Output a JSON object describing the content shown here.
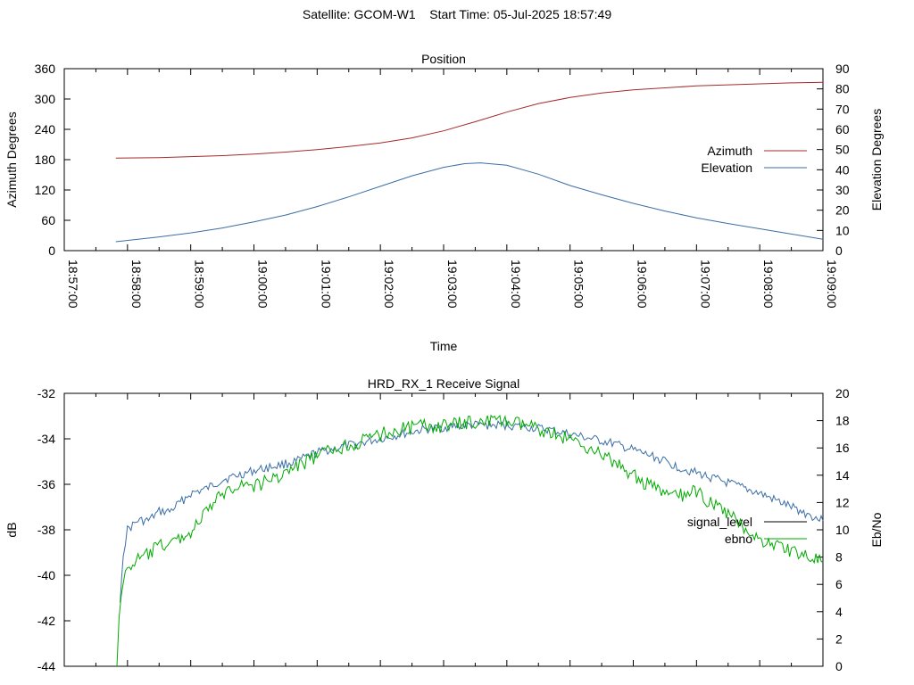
{
  "header": {
    "satellite_text": "Satellite: GCOM-W1",
    "start_time_text": "Start Time: 05-Jul-2025 18:57:49"
  },
  "chart_data": [
    {
      "type": "line",
      "title": "Position",
      "xlabel": "Time",
      "ylabel": "Azimuth Degrees",
      "y2label": "Elevation Degrees",
      "x_ticks": [
        "18:57:00",
        "18:58:00",
        "18:59:00",
        "19:00:00",
        "19:01:00",
        "19:02:00",
        "19:03:00",
        "19:04:00",
        "19:05:00",
        "19:06:00",
        "19:07:00",
        "19:08:00",
        "19:09:00"
      ],
      "xlim": [
        "18:57:00",
        "19:09:00"
      ],
      "ylim": [
        0,
        360
      ],
      "y_ticks": [
        0,
        60,
        120,
        180,
        240,
        300,
        360
      ],
      "y2lim": [
        0,
        90
      ],
      "y2_ticks": [
        0,
        10,
        20,
        30,
        40,
        50,
        60,
        70,
        80,
        90
      ],
      "legend_position": "right",
      "grid": false,
      "series": [
        {
          "name": "Azimuth",
          "axis": "y",
          "color": "#a52a2a",
          "points": [
            [
              "18:57:49",
              183
            ],
            [
              "18:58:30",
              184
            ],
            [
              "18:59:00",
              186
            ],
            [
              "18:59:30",
              188
            ],
            [
              "19:00:00",
              191
            ],
            [
              "19:00:30",
              195
            ],
            [
              "19:01:00",
              200
            ],
            [
              "19:01:30",
              206
            ],
            [
              "19:02:00",
              213
            ],
            [
              "19:02:30",
              223
            ],
            [
              "19:03:00",
              237
            ],
            [
              "19:03:30",
              255
            ],
            [
              "19:04:00",
              274
            ],
            [
              "19:04:30",
              291
            ],
            [
              "19:05:00",
              303
            ],
            [
              "19:05:30",
              312
            ],
            [
              "19:06:00",
              318
            ],
            [
              "19:06:30",
              322
            ],
            [
              "19:07:00",
              326
            ],
            [
              "19:07:30",
              328
            ],
            [
              "19:08:00",
              330
            ],
            [
              "19:08:30",
              332
            ],
            [
              "19:09:00",
              333
            ]
          ]
        },
        {
          "name": "Elevation",
          "axis": "y2",
          "color": "#3a6ea5",
          "points": [
            [
              "18:57:49",
              4.4
            ],
            [
              "18:58:30",
              6.8
            ],
            [
              "18:59:00",
              8.8
            ],
            [
              "18:59:30",
              11.2
            ],
            [
              "19:00:00",
              14.2
            ],
            [
              "19:00:30",
              17.6
            ],
            [
              "19:01:00",
              21.8
            ],
            [
              "19:01:30",
              26.6
            ],
            [
              "19:02:00",
              31.8
            ],
            [
              "19:02:30",
              37.0
            ],
            [
              "19:03:00",
              41.2
            ],
            [
              "19:03:20",
              43.0
            ],
            [
              "19:03:35",
              43.4
            ],
            [
              "19:04:00",
              42.2
            ],
            [
              "19:04:30",
              37.8
            ],
            [
              "19:05:00",
              32.2
            ],
            [
              "19:05:30",
              27.6
            ],
            [
              "19:06:00",
              23.4
            ],
            [
              "19:06:30",
              19.6
            ],
            [
              "19:07:00",
              16.2
            ],
            [
              "19:07:30",
              13.4
            ],
            [
              "19:08:00",
              10.8
            ],
            [
              "19:08:30",
              8.2
            ],
            [
              "19:09:00",
              5.6
            ]
          ]
        }
      ]
    },
    {
      "type": "line",
      "title": "HRD_RX_1 Receive Signal",
      "ylabel": "dB",
      "y2label": "Eb/No",
      "xlim": [
        "18:57:00",
        "19:09:00"
      ],
      "ylim": [
        -44,
        -32
      ],
      "y_ticks": [
        -44,
        -42,
        -40,
        -38,
        -36,
        -34,
        -32
      ],
      "y2lim": [
        0,
        20
      ],
      "y2_ticks": [
        0,
        2,
        4,
        6,
        8,
        10,
        12,
        14,
        16,
        18,
        20
      ],
      "legend_position": "right",
      "grid": false,
      "series": [
        {
          "name": "signal_level",
          "axis": "y",
          "color": "#3a6ea5",
          "legend_color": "#000000",
          "points": [
            [
              "18:57:53",
              -41.2
            ],
            [
              "18:57:56",
              -39.0
            ],
            [
              "18:58:00",
              -38.0
            ],
            [
              "18:58:10",
              -37.6
            ],
            [
              "18:58:20",
              -37.6
            ],
            [
              "18:58:30",
              -37.2
            ],
            [
              "18:58:40",
              -37.2
            ],
            [
              "18:58:50",
              -36.8
            ],
            [
              "18:59:00",
              -36.4
            ],
            [
              "18:59:15",
              -36.2
            ],
            [
              "18:59:30",
              -35.8
            ],
            [
              "18:59:45",
              -35.6
            ],
            [
              "19:00:00",
              -35.4
            ],
            [
              "19:00:20",
              -35.2
            ],
            [
              "19:00:40",
              -35.0
            ],
            [
              "19:01:00",
              -34.6
            ],
            [
              "19:01:20",
              -34.4
            ],
            [
              "19:01:40",
              -34.2
            ],
            [
              "19:02:00",
              -34.0
            ],
            [
              "19:02:20",
              -33.8
            ],
            [
              "19:02:40",
              -33.6
            ],
            [
              "19:03:00",
              -33.5
            ],
            [
              "19:03:20",
              -33.4
            ],
            [
              "19:03:40",
              -33.4
            ],
            [
              "19:04:00",
              -33.4
            ],
            [
              "19:04:20",
              -33.5
            ],
            [
              "19:04:40",
              -33.6
            ],
            [
              "19:05:00",
              -33.8
            ],
            [
              "19:05:20",
              -34.0
            ],
            [
              "19:05:40",
              -34.2
            ],
            [
              "19:06:00",
              -34.5
            ],
            [
              "19:06:20",
              -34.8
            ],
            [
              "19:06:40",
              -35.2
            ],
            [
              "19:07:00",
              -35.5
            ],
            [
              "19:07:20",
              -35.8
            ],
            [
              "19:07:40",
              -36.1
            ],
            [
              "19:08:00",
              -36.4
            ],
            [
              "19:08:20",
              -36.8
            ],
            [
              "19:08:40",
              -37.2
            ],
            [
              "19:09:00",
              -37.6
            ]
          ]
        },
        {
          "name": "ebno",
          "axis": "y2",
          "color": "#00aa00",
          "points": [
            [
              "18:57:50",
              0.0
            ],
            [
              "18:57:52",
              4.0
            ],
            [
              "18:57:56",
              6.0
            ],
            [
              "18:58:00",
              7.2
            ],
            [
              "18:58:10",
              7.8
            ],
            [
              "18:58:20",
              8.2
            ],
            [
              "18:58:30",
              8.8
            ],
            [
              "18:58:40",
              9.0
            ],
            [
              "18:58:50",
              9.4
            ],
            [
              "18:59:00",
              9.8
            ],
            [
              "18:59:10",
              10.8
            ],
            [
              "18:59:20",
              11.8
            ],
            [
              "18:59:30",
              12.6
            ],
            [
              "18:59:45",
              13.4
            ],
            [
              "19:00:00",
              13.2
            ],
            [
              "19:00:20",
              13.8
            ],
            [
              "19:00:40",
              14.6
            ],
            [
              "19:01:00",
              15.4
            ],
            [
              "19:01:20",
              16.0
            ],
            [
              "19:01:40",
              16.4
            ],
            [
              "19:02:00",
              17.0
            ],
            [
              "19:02:20",
              17.4
            ],
            [
              "19:02:40",
              17.6
            ],
            [
              "19:03:00",
              17.6
            ],
            [
              "19:03:20",
              17.8
            ],
            [
              "19:03:40",
              18.0
            ],
            [
              "19:04:00",
              17.9
            ],
            [
              "19:04:20",
              17.6
            ],
            [
              "19:04:40",
              17.2
            ],
            [
              "19:05:00",
              16.6
            ],
            [
              "19:05:20",
              16.0
            ],
            [
              "19:05:40",
              15.0
            ],
            [
              "19:06:00",
              14.0
            ],
            [
              "19:06:20",
              13.0
            ],
            [
              "19:06:40",
              12.4
            ],
            [
              "19:07:00",
              12.8
            ],
            [
              "19:07:20",
              11.6
            ],
            [
              "19:07:40",
              10.6
            ],
            [
              "19:08:00",
              9.2
            ],
            [
              "19:08:20",
              8.8
            ],
            [
              "19:08:40",
              8.2
            ],
            [
              "19:09:00",
              7.6
            ]
          ]
        }
      ]
    }
  ]
}
